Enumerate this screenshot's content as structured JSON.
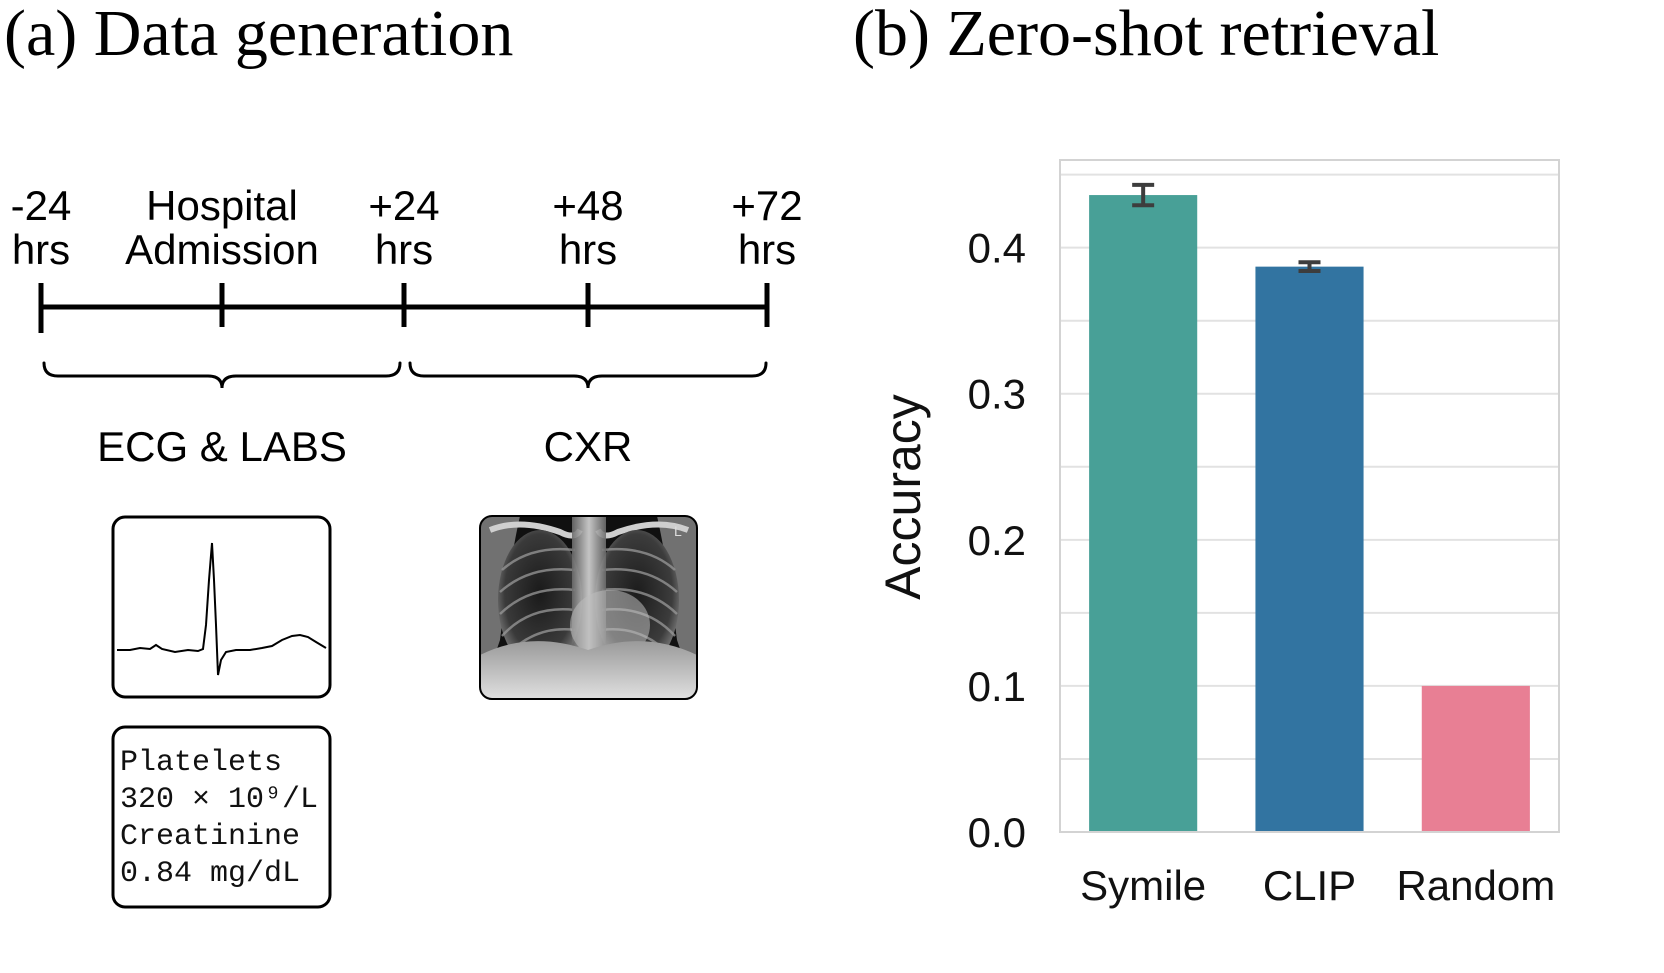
{
  "panel_a": {
    "title": "(a) Data generation",
    "timeline": [
      {
        "line1": "-24",
        "line2": "hrs"
      },
      {
        "line1": "Hospital",
        "line2": "Admission"
      },
      {
        "line1": "+24",
        "line2": "hrs"
      },
      {
        "line1": "+48",
        "line2": "hrs"
      },
      {
        "line1": "+72",
        "line2": "hrs"
      }
    ],
    "groups": [
      "ECG & LABS",
      "CXR"
    ],
    "labs": [
      "Platelets",
      "320 × 10⁹/L",
      "Creatinine",
      "0.84 mg/dL"
    ],
    "icons": [
      "ecg-waveform-icon",
      "chest-xray-image"
    ],
    "xray_label": "L"
  },
  "chart_data": {
    "type": "bar",
    "title": "(b) Zero-shot retrieval",
    "categories": [
      "Symile",
      "CLIP",
      "Random"
    ],
    "values": [
      0.436,
      0.387,
      0.1
    ],
    "errors": [
      0.007,
      0.003,
      0
    ],
    "colors": [
      "#48a097",
      "#3274a1",
      "#e87f94"
    ],
    "ylabel": "Accuracy",
    "xlabel": "",
    "ylim": [
      0,
      0.46
    ],
    "yticks": [
      "0.0",
      "0.1",
      "0.2",
      "0.3",
      "0.4"
    ],
    "grid": true,
    "legend": "none"
  }
}
